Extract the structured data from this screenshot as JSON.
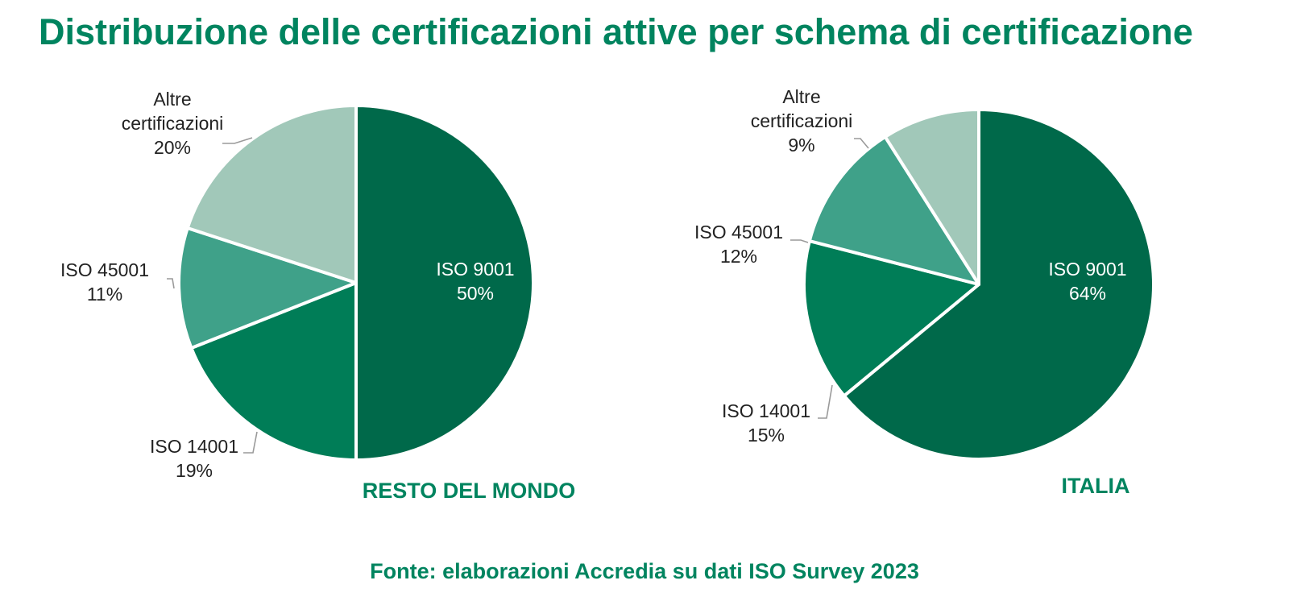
{
  "title": "Distribuzione delle certificazioni attive per schema di certificazione",
  "source": "Fonte: elaborazioni Accredia su dati ISO Survey 2023",
  "colors": {
    "title": "#00845f",
    "label_dark": "#222222",
    "label_inside": "#ffffff",
    "leader": "#9a9a9a",
    "slice_border": "#ffffff"
  },
  "chart_data": [
    {
      "type": "pie",
      "title": "RESTO DEL MONDO",
      "series": [
        {
          "label": "ISO 9001",
          "value": 50,
          "display": "50%",
          "color": "#00694a"
        },
        {
          "label": "ISO 14001",
          "value": 19,
          "display": "19%",
          "color": "#007d57"
        },
        {
          "label": "ISO 45001",
          "value": 11,
          "display": "11%",
          "color": "#3fa189"
        },
        {
          "label": "Altre certificazioni",
          "value": 20,
          "display": "20%",
          "color": "#a1c8b9"
        }
      ]
    },
    {
      "type": "pie",
      "title": "ITALIA",
      "series": [
        {
          "label": "ISO 9001",
          "value": 64,
          "display": "64%",
          "color": "#00694a"
        },
        {
          "label": "ISO 14001",
          "value": 15,
          "display": "15%",
          "color": "#007d57"
        },
        {
          "label": "ISO 45001",
          "value": 12,
          "display": "12%",
          "color": "#3fa189"
        },
        {
          "label": "Altre certificazioni",
          "value": 9,
          "display": "9%",
          "color": "#a1c8b9"
        }
      ]
    }
  ]
}
